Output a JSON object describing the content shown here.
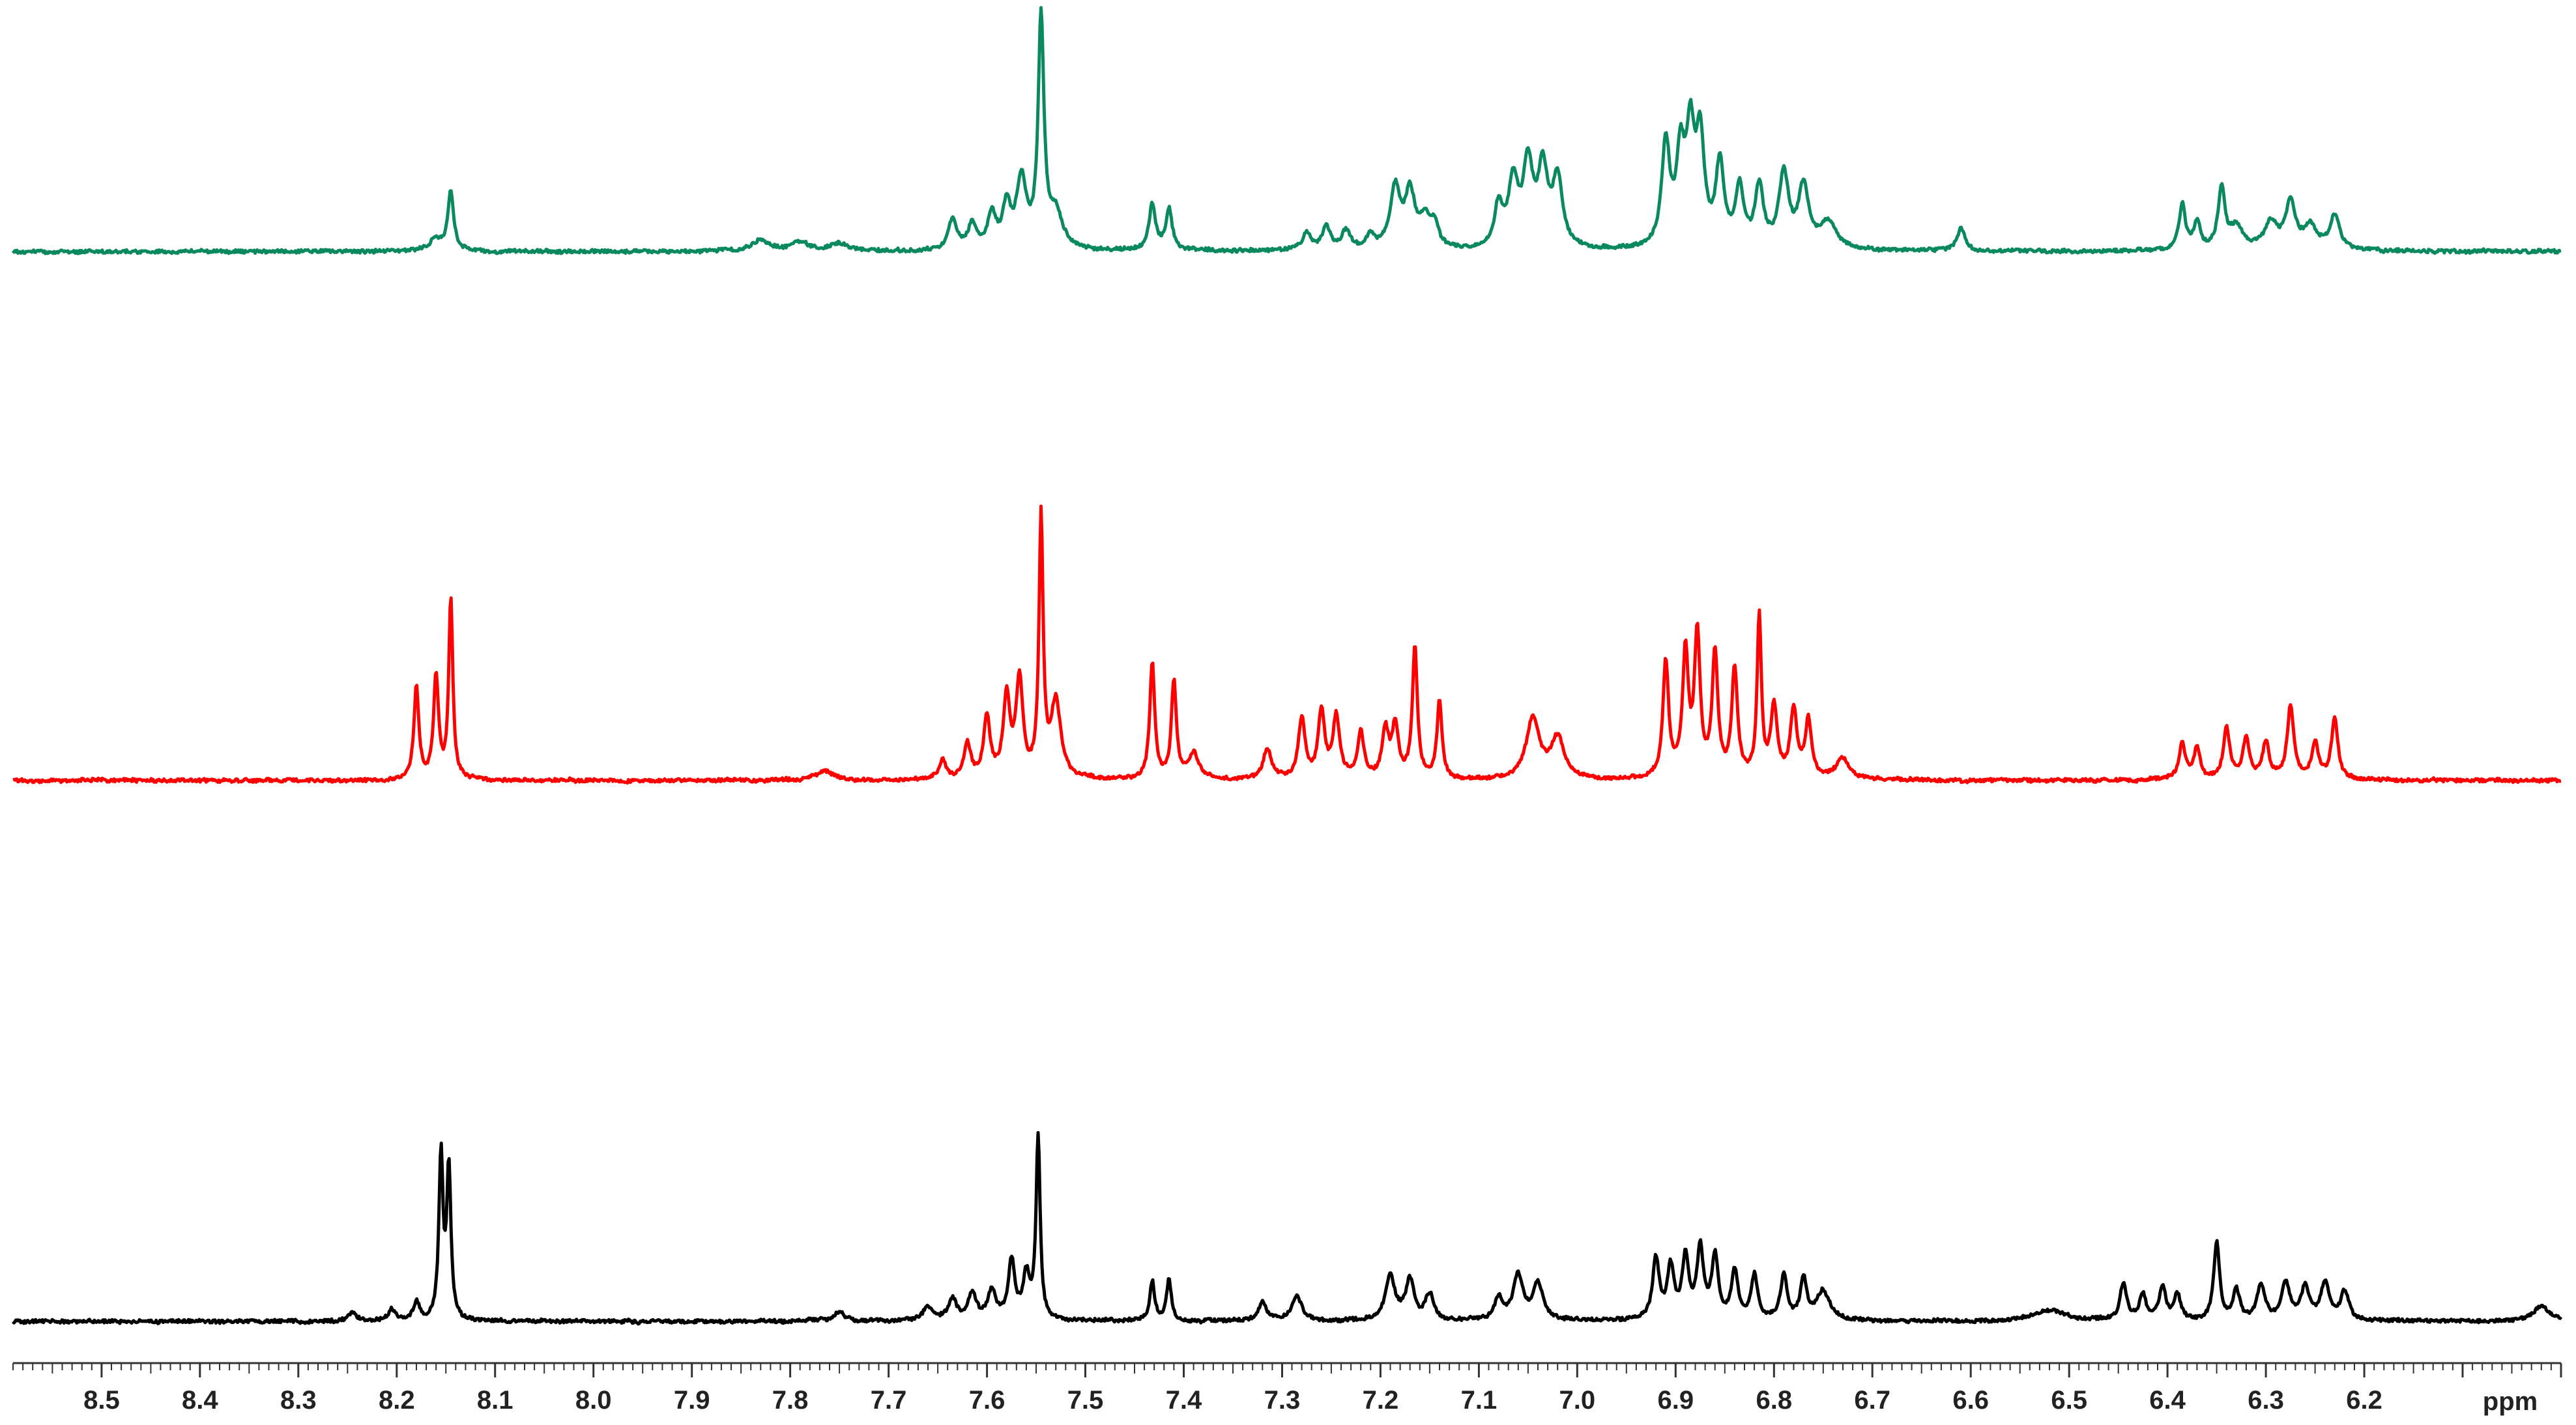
{
  "chart_data": {
    "type": "line",
    "title": "",
    "xlabel": "ppm",
    "ylabel": "",
    "x_reversed": true,
    "xlim": [
      8.59,
      6.0
    ],
    "grid": false,
    "legend": "none",
    "x_ticks": [
      8.5,
      8.4,
      8.3,
      8.2,
      8.1,
      8.0,
      7.9,
      7.8,
      7.7,
      7.6,
      7.5,
      7.4,
      7.3,
      7.2,
      7.1,
      7.0,
      6.9,
      6.8,
      6.7,
      6.6,
      6.5,
      6.4,
      6.3,
      6.2
    ],
    "x_tick_labels": [
      "8.5",
      "8.4",
      "8.3",
      "8.2",
      "8.1",
      "8.0",
      "7.9",
      "7.8",
      "7.7",
      "7.6",
      "7.5",
      "7.4",
      "7.3",
      "7.2",
      "7.1",
      "7.0",
      "6.9",
      "6.8",
      "6.7",
      "6.6",
      "6.5",
      "6.4",
      "6.3",
      "6.2"
    ],
    "minor_tick_step": 0.01,
    "series": [
      {
        "color": "#0a8a5c",
        "peaks": [
          [
            8.16,
            0.05,
            0.008
          ],
          [
            8.145,
            0.26,
            0.0035
          ],
          [
            7.83,
            0.05,
            0.01
          ],
          [
            7.79,
            0.04,
            0.01
          ],
          [
            7.75,
            0.03,
            0.01
          ],
          [
            7.635,
            0.14,
            0.005
          ],
          [
            7.615,
            0.11,
            0.005
          ],
          [
            7.595,
            0.15,
            0.005
          ],
          [
            7.58,
            0.18,
            0.005
          ],
          [
            7.565,
            0.3,
            0.006
          ],
          [
            7.545,
            1.0,
            0.0035
          ],
          [
            7.53,
            0.15,
            0.008
          ],
          [
            7.432,
            0.2,
            0.004
          ],
          [
            7.415,
            0.18,
            0.004
          ],
          [
            7.275,
            0.08,
            0.005
          ],
          [
            7.255,
            0.1,
            0.005
          ],
          [
            7.235,
            0.08,
            0.005
          ],
          [
            7.21,
            0.06,
            0.005
          ],
          [
            7.185,
            0.27,
            0.006
          ],
          [
            7.17,
            0.24,
            0.006
          ],
          [
            7.155,
            0.12,
            0.006
          ],
          [
            7.145,
            0.1,
            0.005
          ],
          [
            7.08,
            0.18,
            0.005
          ],
          [
            7.065,
            0.28,
            0.006
          ],
          [
            7.05,
            0.35,
            0.006
          ],
          [
            7.035,
            0.33,
            0.006
          ],
          [
            7.02,
            0.3,
            0.006
          ],
          [
            6.91,
            0.45,
            0.005
          ],
          [
            6.895,
            0.38,
            0.005
          ],
          [
            6.885,
            0.46,
            0.005
          ],
          [
            6.875,
            0.45,
            0.005
          ],
          [
            6.855,
            0.36,
            0.005
          ],
          [
            6.835,
            0.26,
            0.005
          ],
          [
            6.815,
            0.26,
            0.005
          ],
          [
            6.79,
            0.32,
            0.006
          ],
          [
            6.77,
            0.27,
            0.006
          ],
          [
            6.745,
            0.12,
            0.01
          ],
          [
            6.61,
            0.1,
            0.005
          ],
          [
            6.385,
            0.2,
            0.004
          ],
          [
            6.37,
            0.12,
            0.004
          ],
          [
            6.345,
            0.27,
            0.004
          ],
          [
            6.33,
            0.1,
            0.008
          ],
          [
            6.295,
            0.12,
            0.008
          ],
          [
            6.275,
            0.2,
            0.006
          ],
          [
            6.255,
            0.1,
            0.008
          ],
          [
            6.23,
            0.15,
            0.006
          ]
        ]
      },
      {
        "color": "#ff0000",
        "peaks": [
          [
            8.18,
            0.36,
            0.003
          ],
          [
            8.16,
            0.4,
            0.003
          ],
          [
            8.145,
            0.7,
            0.0025
          ],
          [
            7.765,
            0.04,
            0.01
          ],
          [
            7.645,
            0.08,
            0.004
          ],
          [
            7.62,
            0.14,
            0.004
          ],
          [
            7.6,
            0.23,
            0.004
          ],
          [
            7.58,
            0.32,
            0.004
          ],
          [
            7.567,
            0.38,
            0.004
          ],
          [
            7.545,
            1.0,
            0.0025
          ],
          [
            7.53,
            0.3,
            0.006
          ],
          [
            7.432,
            0.45,
            0.003
          ],
          [
            7.41,
            0.38,
            0.003
          ],
          [
            7.39,
            0.1,
            0.006
          ],
          [
            7.315,
            0.12,
            0.005
          ],
          [
            7.28,
            0.24,
            0.004
          ],
          [
            7.26,
            0.26,
            0.004
          ],
          [
            7.245,
            0.24,
            0.004
          ],
          [
            7.22,
            0.18,
            0.004
          ],
          [
            7.195,
            0.18,
            0.004
          ],
          [
            7.185,
            0.2,
            0.004
          ],
          [
            7.165,
            0.51,
            0.003
          ],
          [
            7.14,
            0.3,
            0.003
          ],
          [
            7.045,
            0.24,
            0.008
          ],
          [
            7.02,
            0.16,
            0.008
          ],
          [
            6.91,
            0.45,
            0.0035
          ],
          [
            6.89,
            0.48,
            0.0035
          ],
          [
            6.878,
            0.55,
            0.0035
          ],
          [
            6.86,
            0.48,
            0.0035
          ],
          [
            6.84,
            0.42,
            0.0035
          ],
          [
            6.815,
            0.63,
            0.0025
          ],
          [
            6.8,
            0.28,
            0.004
          ],
          [
            6.78,
            0.26,
            0.004
          ],
          [
            6.765,
            0.22,
            0.004
          ],
          [
            6.73,
            0.08,
            0.008
          ],
          [
            6.385,
            0.14,
            0.004
          ],
          [
            6.37,
            0.12,
            0.004
          ],
          [
            6.34,
            0.2,
            0.004
          ],
          [
            6.32,
            0.16,
            0.004
          ],
          [
            6.3,
            0.14,
            0.004
          ],
          [
            6.275,
            0.28,
            0.004
          ],
          [
            6.25,
            0.14,
            0.004
          ],
          [
            6.23,
            0.24,
            0.004
          ]
        ]
      },
      {
        "color": "#000000",
        "peaks": [
          [
            8.245,
            0.05,
            0.004
          ],
          [
            8.205,
            0.06,
            0.004
          ],
          [
            8.18,
            0.1,
            0.004
          ],
          [
            8.155,
            0.9,
            0.0025
          ],
          [
            8.147,
            0.82,
            0.0025
          ],
          [
            7.75,
            0.05,
            0.006
          ],
          [
            7.66,
            0.07,
            0.006
          ],
          [
            7.635,
            0.12,
            0.005
          ],
          [
            7.615,
            0.14,
            0.005
          ],
          [
            7.595,
            0.16,
            0.005
          ],
          [
            7.575,
            0.32,
            0.004
          ],
          [
            7.56,
            0.24,
            0.004
          ],
          [
            7.548,
            1.0,
            0.0025
          ],
          [
            7.432,
            0.22,
            0.003
          ],
          [
            7.415,
            0.22,
            0.003
          ],
          [
            7.32,
            0.1,
            0.005
          ],
          [
            7.285,
            0.14,
            0.006
          ],
          [
            7.19,
            0.24,
            0.006
          ],
          [
            7.17,
            0.22,
            0.005
          ],
          [
            7.15,
            0.14,
            0.005
          ],
          [
            7.08,
            0.12,
            0.005
          ],
          [
            7.06,
            0.24,
            0.006
          ],
          [
            7.04,
            0.2,
            0.006
          ],
          [
            6.92,
            0.33,
            0.004
          ],
          [
            6.905,
            0.28,
            0.004
          ],
          [
            6.89,
            0.34,
            0.004
          ],
          [
            6.875,
            0.38,
            0.004
          ],
          [
            6.86,
            0.34,
            0.004
          ],
          [
            6.84,
            0.26,
            0.004
          ],
          [
            6.82,
            0.24,
            0.004
          ],
          [
            6.79,
            0.24,
            0.004
          ],
          [
            6.77,
            0.22,
            0.004
          ],
          [
            6.75,
            0.16,
            0.008
          ],
          [
            6.52,
            0.06,
            0.02
          ],
          [
            6.445,
            0.2,
            0.004
          ],
          [
            6.425,
            0.14,
            0.004
          ],
          [
            6.405,
            0.18,
            0.004
          ],
          [
            6.39,
            0.14,
            0.004
          ],
          [
            6.35,
            0.42,
            0.0035
          ],
          [
            6.33,
            0.16,
            0.004
          ],
          [
            6.305,
            0.18,
            0.005
          ],
          [
            6.28,
            0.2,
            0.005
          ],
          [
            6.26,
            0.18,
            0.005
          ],
          [
            6.24,
            0.2,
            0.005
          ],
          [
            6.22,
            0.16,
            0.005
          ],
          [
            6.02,
            0.08,
            0.01
          ]
        ]
      }
    ]
  }
}
